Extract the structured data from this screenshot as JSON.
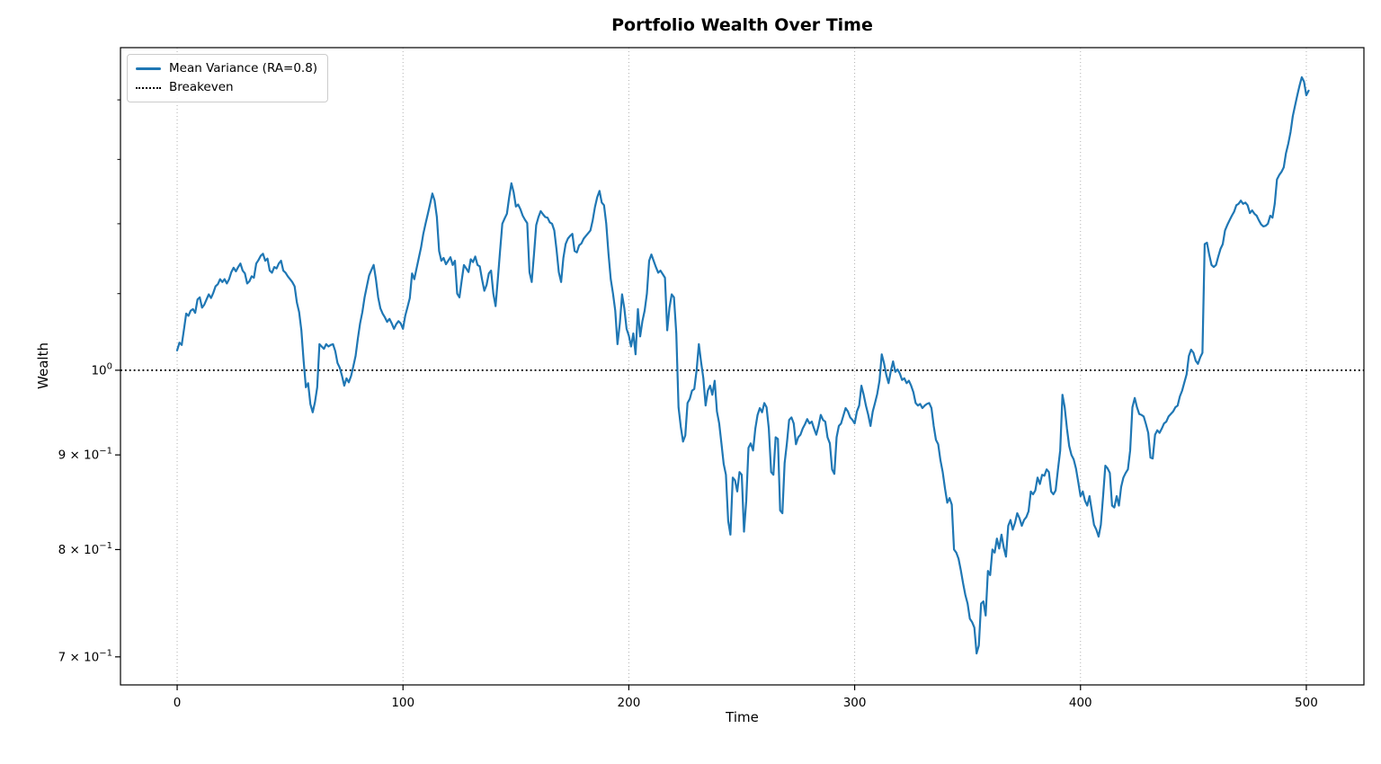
{
  "chart_data": {
    "type": "line",
    "title": "Portfolio Wealth Over Time",
    "xlabel": "Time",
    "ylabel": "Wealth",
    "yscale": "log",
    "xlim": [
      -25.1,
      525.5
    ],
    "ylim": [
      0.676,
      1.494
    ],
    "xticks": [
      0,
      100,
      200,
      300,
      400,
      500
    ],
    "yticks": [
      {
        "value": 1.0,
        "prefix": "",
        "base": "10",
        "sup": "0"
      },
      {
        "value": 0.9,
        "prefix": "9 × ",
        "base": "10",
        "sup": "−1"
      },
      {
        "value": 0.8,
        "prefix": "8 × ",
        "base": "10",
        "sup": "−1"
      },
      {
        "value": 0.7,
        "prefix": "7 × ",
        "base": "10",
        "sup": "−1"
      }
    ],
    "yminorticks": [
      1.1,
      1.2,
      1.3,
      1.4
    ],
    "grid": {
      "axis": "x",
      "style": "dotted",
      "color": "#b0b0b0"
    },
    "legend_position": "upper left",
    "breakeven": {
      "label": "Breakeven",
      "value": 1.0,
      "color": "#000000",
      "style": "dotted"
    },
    "series": [
      {
        "name": "Mean Variance (RA=0.8)",
        "color": "#1f77b4",
        "x_start": 0,
        "x_step": 1,
        "wealth": [
          1.025,
          1.035,
          1.032,
          1.052,
          1.073,
          1.07,
          1.077,
          1.079,
          1.074,
          1.092,
          1.095,
          1.081,
          1.085,
          1.092,
          1.099,
          1.094,
          1.101,
          1.11,
          1.113,
          1.12,
          1.116,
          1.12,
          1.114,
          1.12,
          1.13,
          1.136,
          1.131,
          1.137,
          1.142,
          1.132,
          1.128,
          1.114,
          1.117,
          1.124,
          1.122,
          1.142,
          1.147,
          1.153,
          1.156,
          1.146,
          1.149,
          1.132,
          1.129,
          1.137,
          1.135,
          1.142,
          1.146,
          1.132,
          1.129,
          1.124,
          1.12,
          1.116,
          1.11,
          1.088,
          1.075,
          1.051,
          1.012,
          0.979,
          0.984,
          0.959,
          0.949,
          0.961,
          0.979,
          1.033,
          1.03,
          1.027,
          1.033,
          1.03,
          1.032,
          1.033,
          1.024,
          1.009,
          1.003,
          0.993,
          0.981,
          0.99,
          0.985,
          0.993,
          1.005,
          1.018,
          1.04,
          1.06,
          1.075,
          1.095,
          1.11,
          1.125,
          1.133,
          1.14,
          1.12,
          1.095,
          1.08,
          1.073,
          1.068,
          1.062,
          1.066,
          1.06,
          1.053,
          1.059,
          1.063,
          1.06,
          1.053,
          1.07,
          1.082,
          1.094,
          1.128,
          1.12,
          1.135,
          1.15,
          1.165,
          1.185,
          1.2,
          1.215,
          1.23,
          1.246,
          1.235,
          1.21,
          1.16,
          1.146,
          1.15,
          1.141,
          1.146,
          1.151,
          1.14,
          1.146,
          1.1,
          1.095,
          1.118,
          1.14,
          1.135,
          1.13,
          1.148,
          1.144,
          1.152,
          1.14,
          1.138,
          1.12,
          1.104,
          1.112,
          1.128,
          1.132,
          1.1,
          1.083,
          1.12,
          1.16,
          1.2,
          1.208,
          1.215,
          1.24,
          1.262,
          1.248,
          1.226,
          1.229,
          1.222,
          1.212,
          1.206,
          1.201,
          1.13,
          1.116,
          1.155,
          1.198,
          1.21,
          1.219,
          1.214,
          1.21,
          1.209,
          1.202,
          1.2,
          1.19,
          1.162,
          1.13,
          1.116,
          1.15,
          1.17,
          1.178,
          1.182,
          1.185,
          1.16,
          1.158,
          1.168,
          1.171,
          1.178,
          1.182,
          1.186,
          1.19,
          1.205,
          1.225,
          1.24,
          1.25,
          1.232,
          1.228,
          1.2,
          1.156,
          1.12,
          1.1,
          1.077,
          1.033,
          1.06,
          1.099,
          1.08,
          1.053,
          1.044,
          1.03,
          1.047,
          1.02,
          1.079,
          1.043,
          1.063,
          1.077,
          1.1,
          1.146,
          1.155,
          1.146,
          1.137,
          1.129,
          1.132,
          1.127,
          1.122,
          1.051,
          1.081,
          1.099,
          1.095,
          1.047,
          0.955,
          0.932,
          0.915,
          0.922,
          0.96,
          0.965,
          0.975,
          0.977,
          1.0,
          1.033,
          1.01,
          0.99,
          0.957,
          0.975,
          0.981,
          0.97,
          0.987,
          0.95,
          0.936,
          0.913,
          0.89,
          0.878,
          0.829,
          0.815,
          0.875,
          0.872,
          0.86,
          0.881,
          0.878,
          0.818,
          0.85,
          0.908,
          0.913,
          0.905,
          0.93,
          0.946,
          0.954,
          0.949,
          0.96,
          0.955,
          0.93,
          0.881,
          0.878,
          0.92,
          0.918,
          0.84,
          0.837,
          0.891,
          0.913,
          0.94,
          0.943,
          0.936,
          0.912,
          0.92,
          0.923,
          0.93,
          0.935,
          0.941,
          0.936,
          0.938,
          0.93,
          0.923,
          0.933,
          0.946,
          0.94,
          0.938,
          0.92,
          0.913,
          0.884,
          0.879,
          0.92,
          0.933,
          0.936,
          0.945,
          0.954,
          0.95,
          0.943,
          0.94,
          0.936,
          0.95,
          0.957,
          0.981,
          0.97,
          0.957,
          0.946,
          0.933,
          0.95,
          0.96,
          0.971,
          0.987,
          1.02,
          1.009,
          0.994,
          0.984,
          0.999,
          1.011,
          0.998,
          1.001,
          0.996,
          0.988,
          0.99,
          0.984,
          0.987,
          0.981,
          0.973,
          0.96,
          0.957,
          0.959,
          0.954,
          0.957,
          0.959,
          0.96,
          0.954,
          0.933,
          0.917,
          0.912,
          0.894,
          0.881,
          0.863,
          0.848,
          0.853,
          0.846,
          0.8,
          0.797,
          0.791,
          0.78,
          0.767,
          0.756,
          0.748,
          0.734,
          0.731,
          0.726,
          0.703,
          0.71,
          0.748,
          0.75,
          0.737,
          0.779,
          0.775,
          0.8,
          0.797,
          0.811,
          0.801,
          0.815,
          0.802,
          0.793,
          0.824,
          0.83,
          0.82,
          0.827,
          0.837,
          0.832,
          0.824,
          0.83,
          0.833,
          0.839,
          0.86,
          0.857,
          0.861,
          0.875,
          0.868,
          0.878,
          0.877,
          0.884,
          0.881,
          0.86,
          0.857,
          0.861,
          0.884,
          0.905,
          0.97,
          0.955,
          0.93,
          0.91,
          0.9,
          0.895,
          0.885,
          0.87,
          0.855,
          0.86,
          0.85,
          0.845,
          0.855,
          0.84,
          0.825,
          0.82,
          0.813,
          0.825,
          0.855,
          0.888,
          0.885,
          0.88,
          0.845,
          0.843,
          0.855,
          0.845,
          0.865,
          0.875,
          0.88,
          0.884,
          0.905,
          0.955,
          0.966,
          0.955,
          0.947,
          0.946,
          0.944,
          0.935,
          0.925,
          0.897,
          0.896,
          0.923,
          0.928,
          0.925,
          0.93,
          0.936,
          0.938,
          0.944,
          0.947,
          0.95,
          0.955,
          0.957,
          0.968,
          0.975,
          0.985,
          0.995,
          1.018,
          1.026,
          1.022,
          1.012,
          1.008,
          1.016,
          1.022,
          1.17,
          1.172,
          1.155,
          1.14,
          1.137,
          1.14,
          1.152,
          1.163,
          1.17,
          1.19,
          1.198,
          1.205,
          1.212,
          1.218,
          1.228,
          1.23,
          1.235,
          1.23,
          1.232,
          1.228,
          1.216,
          1.22,
          1.215,
          1.212,
          1.205,
          1.199,
          1.196,
          1.197,
          1.2,
          1.212,
          1.209,
          1.23,
          1.268,
          1.275,
          1.28,
          1.287,
          1.31,
          1.326,
          1.345,
          1.372,
          1.39,
          1.408,
          1.425,
          1.44,
          1.432,
          1.408,
          1.416
        ]
      }
    ]
  }
}
